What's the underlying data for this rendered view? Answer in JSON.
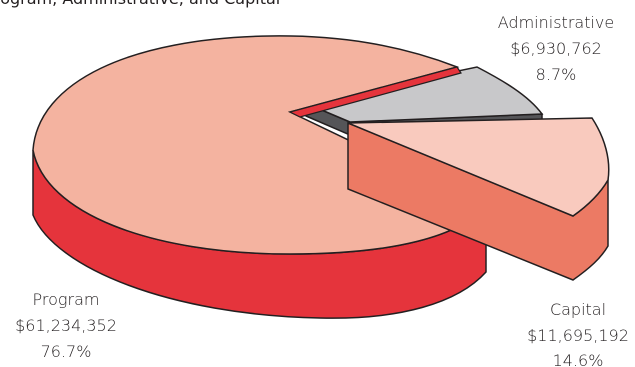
{
  "chart_data": {
    "type": "pie",
    "title": "rogram, Administrative, and Capital",
    "slices": [
      {
        "name": "Program",
        "amount": "$61,234,352",
        "percent_label": "76.7%",
        "value": 61234352,
        "percent": 76.7,
        "top_color": "#f4b3a0",
        "side_color": "#e5343c"
      },
      {
        "name": "Administrative",
        "amount": "$6,930,762",
        "percent_label": "8.7%",
        "value": 6930762,
        "percent": 8.7,
        "top_color": "#c8c8ca",
        "side_color": "#555558"
      },
      {
        "name": "Capital",
        "amount": "$11,695,192",
        "percent_label": "14.6%",
        "value": 11695192,
        "percent": 14.6,
        "top_color": "#f9cabe",
        "side_color": "#ec7a64"
      }
    ],
    "accent_slice": {
      "top_color": "#e5343c"
    }
  }
}
